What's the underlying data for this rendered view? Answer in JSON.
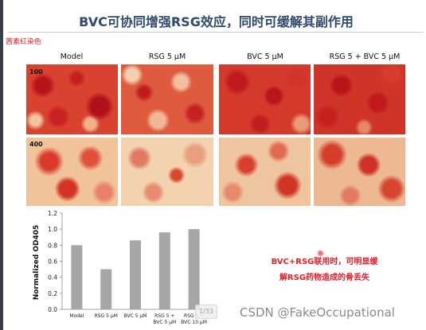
{
  "slide": {
    "title": "BVC可协同增强RSG效应，同时可缓解其副作用",
    "stain_label": "茜素红染色",
    "columns": [
      "Model",
      "RSG 5 μM",
      "BVC 5 μM",
      "RSG 5 + BVC 5 μM"
    ],
    "rows": [
      "100",
      "400"
    ],
    "annotation_line1": "BVC+RSG联用时，可明显缓",
    "annotation_line2": "解RSG药物造成的骨丢失",
    "page_indicator": "1/33",
    "watermark": "CSDN @FakeOccupational",
    "colors": {
      "title": "#2f4a6d",
      "accent_red": "#e0212a",
      "bar": "#a6a6a6"
    }
  },
  "chart_data": {
    "type": "bar",
    "categories": [
      "Model",
      "RSG 5 μM",
      "BVC 5 μM",
      "RSG 5 + BVC 5 μM",
      "RSG 5 + BVC 10 μM"
    ],
    "category_lines": [
      [
        "Model"
      ],
      [
        "RSG 5 μM"
      ],
      [
        "BVC 5 μM"
      ],
      [
        "RSG 5 +",
        "BVC 5 μM"
      ],
      [
        "RSG 5 +",
        "BVC 10 μM"
      ]
    ],
    "values": [
      0.8,
      0.5,
      0.86,
      0.96,
      1.0
    ],
    "ylabel": "Normalized OD405",
    "ylim": [
      0,
      1.2
    ],
    "yticks": [
      "0.0",
      "0.2",
      "0.4",
      "0.6",
      "0.8",
      "1.0",
      "1.2"
    ],
    "grid": false
  }
}
